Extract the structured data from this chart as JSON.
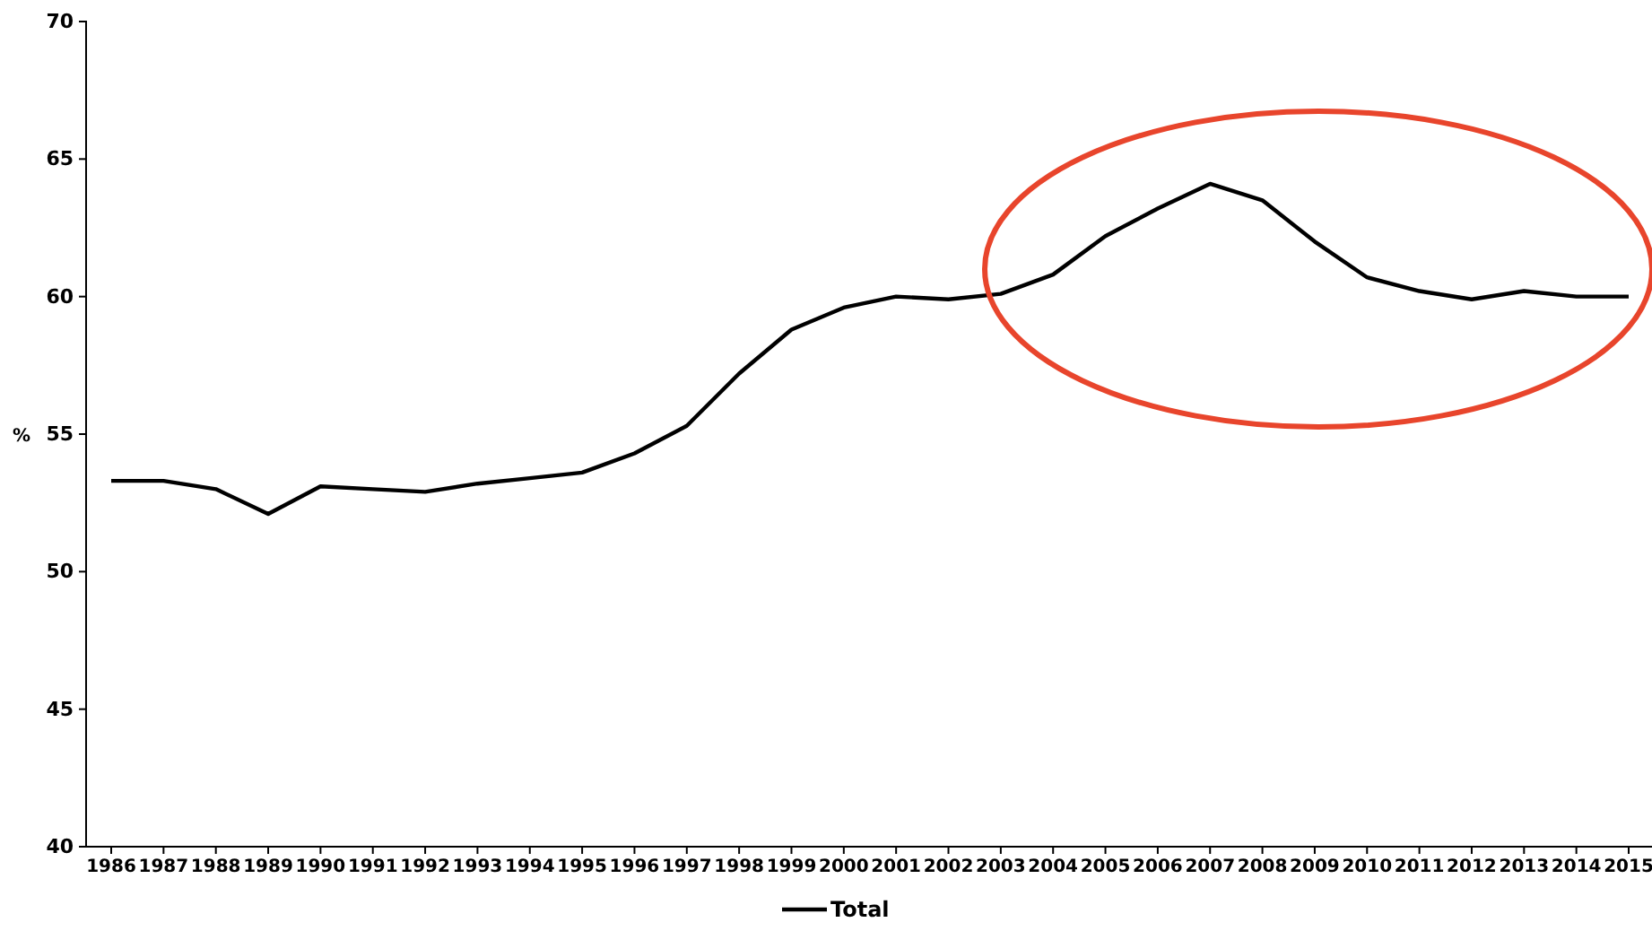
{
  "chart_data": {
    "type": "line",
    "ylabel": "%",
    "categories": [
      "1986",
      "1987",
      "1988",
      "1989",
      "1990",
      "1991",
      "1992",
      "1993",
      "1994",
      "1995",
      "1996",
      "1997",
      "1998",
      "1999",
      "2000",
      "2001",
      "2002",
      "2003",
      "2004",
      "2005",
      "2006",
      "2007",
      "2008",
      "2009",
      "2010",
      "2011",
      "2012",
      "2013",
      "2014",
      "2015"
    ],
    "series": [
      {
        "name": "Total",
        "color": "#000000",
        "values": [
          53.3,
          53.3,
          53.0,
          52.1,
          53.1,
          53.0,
          52.9,
          53.2,
          53.4,
          53.6,
          54.3,
          55.3,
          57.2,
          58.8,
          59.6,
          60.0,
          59.9,
          60.1,
          60.8,
          62.2,
          63.2,
          64.1,
          63.5,
          62.0,
          60.7,
          60.2,
          59.9,
          60.2,
          60.0,
          60.0
        ]
      }
    ],
    "ylim": [
      40,
      70
    ],
    "yticks": [
      40,
      45,
      50,
      55,
      60,
      65,
      70
    ],
    "grid": false,
    "legend": "bottom",
    "marker": "none",
    "line_style": "solid"
  }
}
